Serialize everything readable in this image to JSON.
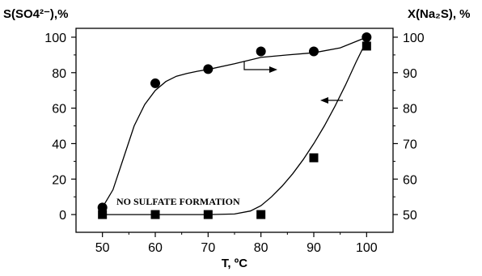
{
  "chart_data": {
    "type": "scatter",
    "xlabel": "T, ºC",
    "ylabel_left": "S(SO4²⁻),%",
    "ylabel_right": "X(Na₂S), %",
    "xlim": [
      45,
      105
    ],
    "ylim_left": [
      -10,
      105
    ],
    "ylim_right": [
      45,
      102.5
    ],
    "x_ticks": [
      50,
      60,
      70,
      80,
      90,
      100
    ],
    "y_ticks_left": [
      0,
      20,
      40,
      60,
      80,
      100
    ],
    "y_ticks_right": [
      50,
      60,
      70,
      80,
      90,
      100
    ],
    "grid": false,
    "annotations": [
      {
        "text": "NO SULFATE FORMATION"
      }
    ],
    "series": [
      {
        "marker": "circle",
        "axis": "right",
        "x": [
          50,
          60,
          70,
          80,
          90,
          100
        ],
        "y": [
          52,
          87,
          91,
          96,
          96,
          100
        ],
        "curve": [
          [
            50,
            52
          ],
          [
            52,
            57
          ],
          [
            54,
            66
          ],
          [
            56,
            75
          ],
          [
            58,
            81
          ],
          [
            60,
            85
          ],
          [
            62,
            87.5
          ],
          [
            64,
            89
          ],
          [
            66,
            89.8
          ],
          [
            68,
            90.4
          ],
          [
            70,
            90.9
          ],
          [
            75,
            92.5
          ],
          [
            80,
            94.3
          ],
          [
            85,
            95
          ],
          [
            90,
            95.6
          ],
          [
            95,
            97
          ],
          [
            100,
            100
          ]
        ]
      },
      {
        "marker": "square",
        "axis": "left",
        "x": [
          50,
          60,
          70,
          80,
          90,
          100
        ],
        "y": [
          0,
          0,
          0,
          0,
          32,
          95
        ],
        "curve": [
          [
            50,
            0
          ],
          [
            60,
            0
          ],
          [
            70,
            0
          ],
          [
            75,
            0.3
          ],
          [
            78,
            2
          ],
          [
            80,
            5
          ],
          [
            82,
            10
          ],
          [
            84,
            16
          ],
          [
            86,
            23
          ],
          [
            88,
            31
          ],
          [
            90,
            40
          ],
          [
            92,
            50
          ],
          [
            94,
            61
          ],
          [
            96,
            73
          ],
          [
            98,
            86
          ],
          [
            100,
            98
          ]
        ]
      }
    ]
  }
}
